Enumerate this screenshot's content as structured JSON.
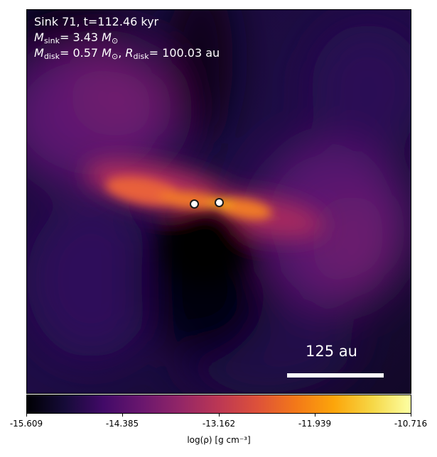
{
  "annotation": {
    "sink_line": "Sink 71, t=112.46 kyr",
    "mass_symbol": "M",
    "sink_subscript": "sink",
    "sink_mass_value": "= 3.43",
    "solar_unit": "M",
    "solar_subscript": "⊙",
    "disk_subscript": "disk",
    "disk_mass_value": "= 0.57",
    "radius_symbol": "R",
    "disk_radius_value": "= 100.03 au",
    "separator": ","
  },
  "scalebar": {
    "label": "125 au"
  },
  "colorbar": {
    "ticks": [
      "-15.609",
      "-14.385",
      "-13.162",
      "-11.939",
      "-10.716"
    ],
    "label": "log(ρ) [g cm⁻³]",
    "colormap": "inferno"
  },
  "colors": {
    "background_dark": "#0a0516",
    "text": "#ffffff",
    "sink_fill": "#ffffff",
    "sink_edge": "#1a1a1a"
  }
}
